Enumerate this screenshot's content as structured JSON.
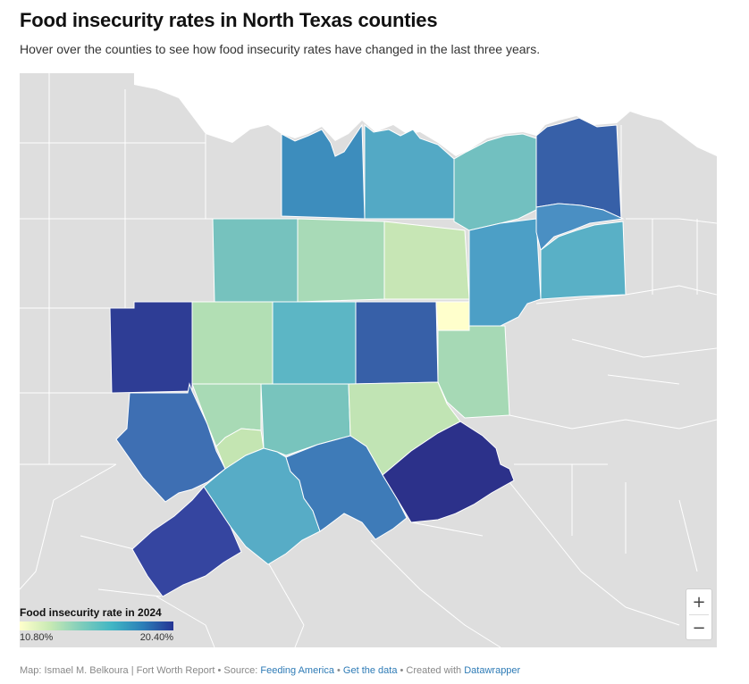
{
  "header": {
    "title": "Food insecurity rates in North Texas counties",
    "subtitle": "Hover over the counties to see how food insecurity rates have changed in the last three years."
  },
  "legend": {
    "title": "Food insecurity rate in 2024",
    "min_label": "10.80%",
    "max_label": "20.40%",
    "min_value": 10.8,
    "max_value": 20.4,
    "colors": [
      "#ffffcc",
      "#c7e9b4",
      "#7fcdbb",
      "#41b6c4",
      "#2c7fb8",
      "#253494"
    ]
  },
  "zoom": {
    "in_label": "+",
    "out_label": "−"
  },
  "footer": {
    "prefix": "Map: Ismael M. Belkoura | Fort Worth Report • Source: ",
    "source_link": "Feeding America",
    "sep1": " • ",
    "data_link": "Get the data",
    "sep2": " • Created with ",
    "tool_link": "Datawrapper"
  },
  "colors": {
    "background_county": "#dcdcdc",
    "county_border": "#ffffff"
  }
}
